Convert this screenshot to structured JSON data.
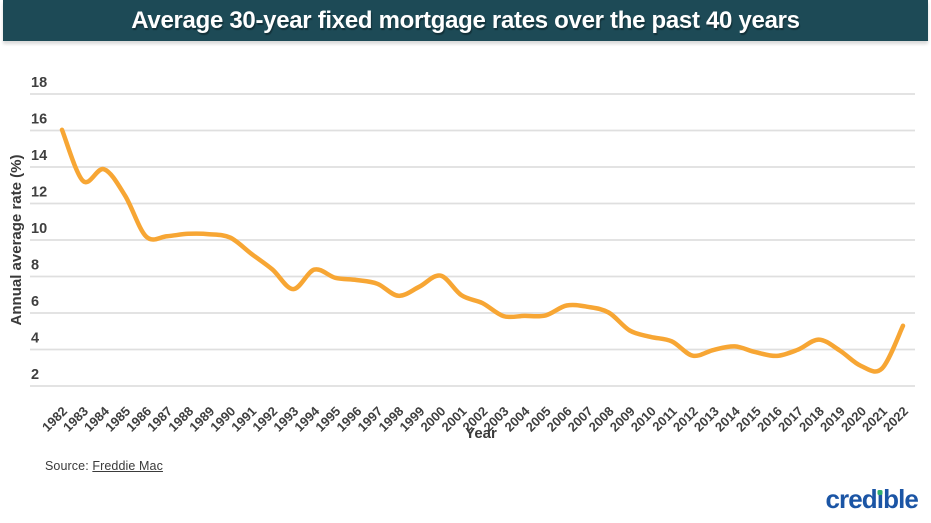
{
  "header": {
    "title": "Average 30-year fixed mortgage rates over the past 40 years",
    "bg_color": "#1D4A56",
    "text_color": "#FFFFFF"
  },
  "chart_data": {
    "type": "line",
    "title": "Average 30-year fixed mortgage rates over the past 40 years",
    "xlabel": "Year",
    "ylabel": "Annual average rate (%)",
    "x": [
      1982,
      1983,
      1984,
      1985,
      1986,
      1987,
      1988,
      1989,
      1990,
      1991,
      1992,
      1993,
      1994,
      1995,
      1996,
      1997,
      1998,
      1999,
      2000,
      2001,
      2002,
      2003,
      2004,
      2005,
      2006,
      2007,
      2008,
      2009,
      2010,
      2011,
      2012,
      2013,
      2014,
      2015,
      2016,
      2017,
      2018,
      2019,
      2020,
      2021,
      2022
    ],
    "values": [
      16.04,
      13.24,
      13.88,
      12.43,
      10.19,
      10.21,
      10.34,
      10.32,
      10.13,
      9.25,
      8.39,
      7.31,
      8.38,
      7.93,
      7.81,
      7.6,
      6.94,
      7.44,
      8.05,
      6.97,
      6.54,
      5.83,
      5.84,
      5.87,
      6.41,
      6.34,
      6.03,
      5.04,
      4.69,
      4.45,
      3.66,
      3.98,
      4.17,
      3.85,
      3.65,
      3.99,
      4.54,
      3.94,
      3.1,
      2.96,
      5.3
    ],
    "ylim": [
      2,
      18
    ],
    "yticks": [
      18,
      16,
      14,
      12,
      10,
      8,
      6,
      4,
      2
    ],
    "grid": true,
    "legend": "none",
    "line_color": "#F7A634",
    "grid_color": "#DFDFDF",
    "tick_color": "#3F3F3F",
    "axis_title_color": "#3A3A3A"
  },
  "footer": {
    "source_label": "Source:",
    "source_link_text": "Freddie Mac"
  },
  "logo": {
    "text": "credible",
    "display_parts": {
      "pre": "cred",
      "stem": "ı",
      "post": "ble"
    },
    "color": "#1B55A5",
    "dot_color": "#2EAE6E"
  }
}
